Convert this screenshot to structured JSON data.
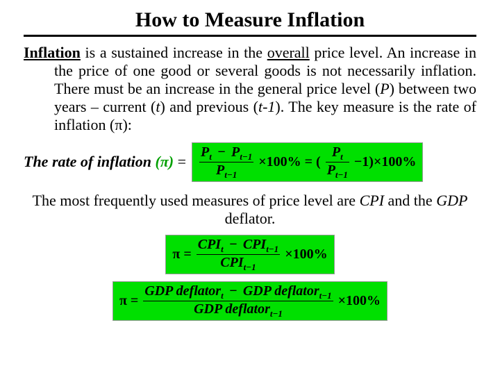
{
  "colors": {
    "formula_bg": "#00E000",
    "text": "#000000",
    "pi_accent": "#00a000"
  },
  "title": "How to Measure Inflation",
  "paragraph": {
    "lead_underlined": "Inflation",
    "t1": " is a sustained increase in the ",
    "overall_u": "overall",
    "t2": " price level. An increase in the price of one good or several goods is not necessarily inflation. There must be an increase in the general price level (",
    "P": "P",
    "t3": ") between two years – current (",
    "tcur": "t",
    "t4": ") and previous (",
    "tprev": "t-1",
    "t5": "). The key measure is the rate of inflation (π):"
  },
  "rate_label": {
    "text": "The rate of inflation ",
    "pi_paren": "(π)",
    "equals": " ="
  },
  "formula_main": {
    "num1": "P",
    "num1_sub": "t",
    "minus": "−",
    "num2": "P",
    "num2_sub": "t−1",
    "den": "P",
    "den_sub": "t−1",
    "times100": "×100% = (",
    "alt_num": "P",
    "alt_num_sub": "t",
    "alt_den": "P",
    "alt_den_sub": "t−1",
    "tail": "−1)×100%"
  },
  "mid_text": {
    "t1": "The most frequently used measures of price level are ",
    "cpi": "CPI",
    "t2": " and the ",
    "gdp": "GDP",
    "t3": " deflator."
  },
  "formula_cpi": {
    "pi_eq": "π =",
    "num1": "CPI",
    "num1_sub": "t",
    "minus": "−",
    "num2": "CPI",
    "num2_sub": "t−1",
    "den": "CPI",
    "den_sub": "t−1",
    "tail": "×100%"
  },
  "formula_gdp": {
    "pi_eq": "π =",
    "num1": "GDP deflator",
    "num1_sub": "t",
    "minus": "−",
    "num2": "GDP deflator",
    "num2_sub": "t−1",
    "den": "GDP deflator",
    "den_sub": "t−1",
    "tail": "×100%"
  }
}
